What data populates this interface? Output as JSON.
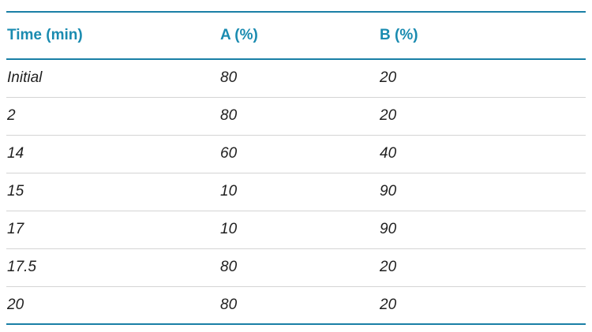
{
  "table": {
    "headers": [
      "Time (min)",
      "A (%)",
      "B (%)"
    ],
    "rows": [
      [
        "Initial",
        "80",
        "20"
      ],
      [
        "2",
        "80",
        "20"
      ],
      [
        "14",
        "60",
        "40"
      ],
      [
        "15",
        "10",
        "90"
      ],
      [
        "17",
        "10",
        "90"
      ],
      [
        "17.5",
        "80",
        "20"
      ],
      [
        "20",
        "80",
        "20"
      ]
    ]
  },
  "colors": {
    "header_text": "#1a8bb0",
    "rule": "#1a7fa6",
    "row_divider": "#d4d4d4",
    "body_text": "#1f1f1f"
  }
}
